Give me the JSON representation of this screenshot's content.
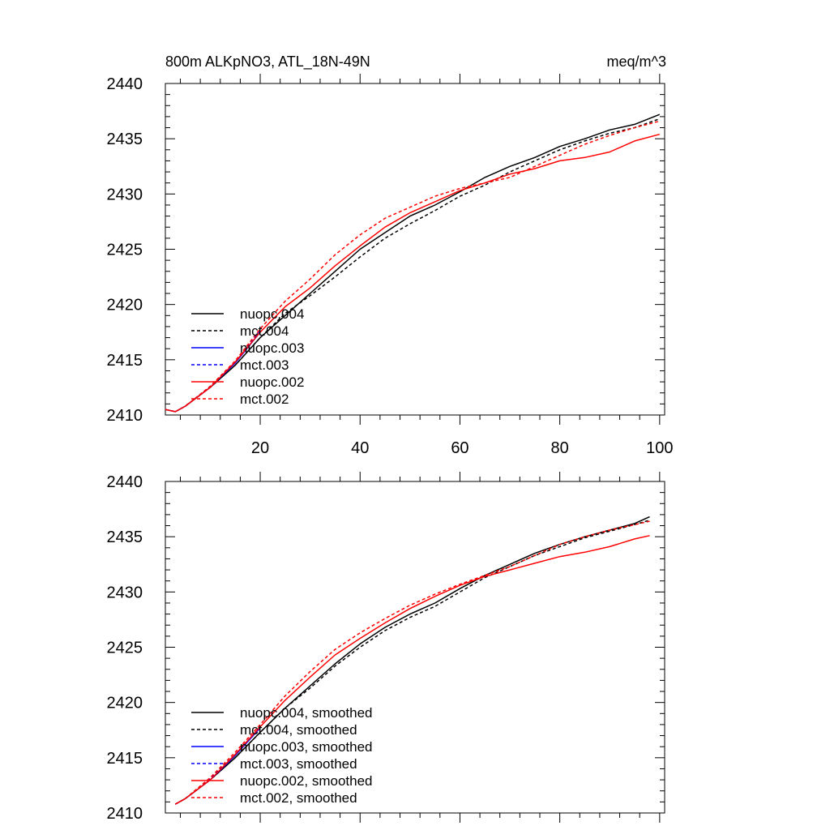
{
  "header": {
    "title": "800m ALKpNO3, ATL_18N-49N",
    "units": "meq/m^3"
  },
  "chart_data": [
    {
      "type": "line",
      "title": "800m ALKpNO3, ATL_18N-49N",
      "units_label": "meq/m^3",
      "xlabel": "",
      "ylabel": "",
      "xlim": [
        1,
        101
      ],
      "ylim": [
        2410,
        2440
      ],
      "x_ticks": [
        20,
        40,
        60,
        80,
        100
      ],
      "x_tick_labels": [
        "20",
        "40",
        "60",
        "80",
        "100"
      ],
      "y_ticks": [
        2410,
        2415,
        2420,
        2425,
        2430,
        2435,
        2440
      ],
      "y_tick_labels": [
        "2410",
        "2415",
        "2420",
        "2425",
        "2430",
        "2435",
        "2440"
      ],
      "grid": false,
      "legend_position": "bottom-left",
      "series": [
        {
          "name": "nuopc.004",
          "color": "#000000",
          "dash": "solid",
          "x": [
            1,
            3,
            5,
            10,
            15,
            20,
            25,
            30,
            35,
            40,
            45,
            50,
            55,
            60,
            65,
            70,
            75,
            80,
            85,
            90,
            95,
            100
          ],
          "values": [
            2410.5,
            2410.3,
            2410.8,
            2412.5,
            2414.5,
            2417.0,
            2419.0,
            2421.0,
            2423.0,
            2425.0,
            2426.5,
            2428.0,
            2429.0,
            2430.2,
            2431.5,
            2432.5,
            2433.3,
            2434.3,
            2435.0,
            2435.8,
            2436.3,
            2437.2
          ]
        },
        {
          "name": "mct.004",
          "color": "#000000",
          "dash": "dashed",
          "x": [
            1,
            3,
            5,
            10,
            15,
            20,
            25,
            30,
            35,
            40,
            45,
            50,
            55,
            60,
            65,
            70,
            75,
            80,
            85,
            90,
            95,
            100
          ],
          "values": [
            2410.5,
            2410.3,
            2410.8,
            2412.5,
            2414.5,
            2417.0,
            2419.2,
            2420.8,
            2422.5,
            2424.3,
            2426.0,
            2427.3,
            2428.5,
            2429.8,
            2430.8,
            2432.0,
            2433.0,
            2434.0,
            2434.8,
            2435.5,
            2436.0,
            2436.8
          ]
        },
        {
          "name": "nuopc.003",
          "color": "#0000ff",
          "dash": "solid",
          "x": [
            1,
            3,
            5,
            10,
            15,
            20
          ],
          "values": [
            2410.5,
            2410.3,
            2410.8,
            2412.5,
            2414.7,
            2417.5
          ]
        },
        {
          "name": "mct.003",
          "color": "#0000ff",
          "dash": "dashed",
          "x": [
            1,
            3,
            5,
            10,
            15,
            20
          ],
          "values": [
            2410.5,
            2410.3,
            2410.8,
            2412.6,
            2414.8,
            2417.6
          ]
        },
        {
          "name": "nuopc.002",
          "color": "#ff0000",
          "dash": "solid",
          "x": [
            1,
            3,
            5,
            10,
            15,
            20,
            25,
            30,
            35,
            40,
            45,
            50,
            55,
            60,
            65,
            70,
            75,
            80,
            85,
            90,
            95,
            100
          ],
          "values": [
            2410.5,
            2410.3,
            2410.8,
            2412.5,
            2414.8,
            2417.5,
            2419.8,
            2421.5,
            2423.5,
            2425.3,
            2427.0,
            2428.3,
            2429.3,
            2430.3,
            2431.0,
            2431.8,
            2432.3,
            2433.0,
            2433.3,
            2433.8,
            2434.8,
            2435.4
          ]
        },
        {
          "name": "mct.002",
          "color": "#ff0000",
          "dash": "dashed",
          "x": [
            1,
            3,
            5,
            10,
            15,
            20,
            25,
            30,
            35,
            40,
            45,
            50,
            55,
            60,
            65,
            70,
            75,
            80,
            85,
            90,
            95,
            100
          ],
          "values": [
            2410.5,
            2410.3,
            2410.8,
            2412.6,
            2414.9,
            2417.8,
            2420.3,
            2422.3,
            2424.5,
            2426.3,
            2427.8,
            2428.8,
            2429.8,
            2430.5,
            2431.0,
            2431.5,
            2432.5,
            2433.5,
            2434.5,
            2435.3,
            2436.0,
            2436.6
          ]
        }
      ]
    },
    {
      "type": "line",
      "title": "",
      "xlabel": "",
      "ylabel": "",
      "xlim": [
        1,
        101
      ],
      "ylim": [
        2410,
        2440
      ],
      "x_ticks": [
        20,
        40,
        60,
        80,
        100
      ],
      "x_tick_labels": [],
      "y_ticks": [
        2410,
        2415,
        2420,
        2425,
        2430,
        2435,
        2440
      ],
      "y_tick_labels": [
        "2410",
        "2415",
        "2420",
        "2425",
        "2430",
        "2435",
        "2440"
      ],
      "grid": false,
      "legend_position": "bottom-left",
      "series": [
        {
          "name": "nuopc.004, smoothed",
          "color": "#000000",
          "dash": "solid",
          "x": [
            3,
            5,
            10,
            15,
            20,
            25,
            30,
            35,
            40,
            45,
            50,
            55,
            60,
            65,
            70,
            75,
            80,
            85,
            90,
            95,
            98
          ],
          "values": [
            2410.8,
            2411.3,
            2413.0,
            2415.0,
            2417.3,
            2419.5,
            2421.5,
            2423.5,
            2425.3,
            2426.8,
            2428.0,
            2429.0,
            2430.3,
            2431.5,
            2432.5,
            2433.5,
            2434.3,
            2435.0,
            2435.6,
            2436.2,
            2436.8
          ]
        },
        {
          "name": "mct.004, smoothed",
          "color": "#000000",
          "dash": "dashed",
          "x": [
            3,
            5,
            10,
            15,
            20,
            25,
            30,
            35,
            40,
            45,
            50,
            55,
            60,
            65,
            70,
            75,
            80,
            85,
            90,
            95,
            98
          ],
          "values": [
            2410.8,
            2411.3,
            2413.0,
            2415.0,
            2417.3,
            2419.5,
            2421.3,
            2423.3,
            2425.0,
            2426.5,
            2427.7,
            2428.7,
            2430.0,
            2431.3,
            2432.3,
            2433.3,
            2434.1,
            2434.9,
            2435.5,
            2436.1,
            2436.5
          ]
        },
        {
          "name": "nuopc.003, smoothed",
          "color": "#0000ff",
          "dash": "solid",
          "x": [
            3,
            5,
            10,
            15,
            20
          ],
          "values": [
            2410.8,
            2411.3,
            2413.0,
            2415.2,
            2417.7
          ]
        },
        {
          "name": "mct.003, smoothed",
          "color": "#0000ff",
          "dash": "dashed",
          "x": [
            3,
            5,
            10,
            15,
            20
          ],
          "values": [
            2410.8,
            2411.3,
            2413.1,
            2415.3,
            2417.8
          ]
        },
        {
          "name": "nuopc.002, smoothed",
          "color": "#ff0000",
          "dash": "solid",
          "x": [
            3,
            5,
            10,
            15,
            20,
            25,
            30,
            35,
            40,
            45,
            50,
            55,
            60,
            65,
            70,
            75,
            80,
            85,
            90,
            95,
            98
          ],
          "values": [
            2410.8,
            2411.3,
            2413.0,
            2415.3,
            2417.8,
            2420.2,
            2422.3,
            2424.3,
            2425.8,
            2427.2,
            2428.5,
            2429.6,
            2430.6,
            2431.4,
            2432.0,
            2432.6,
            2433.2,
            2433.6,
            2434.1,
            2434.8,
            2435.1
          ]
        },
        {
          "name": "mct.002, smoothed",
          "color": "#ff0000",
          "dash": "dashed",
          "x": [
            3,
            5,
            10,
            15,
            20,
            25,
            30,
            35,
            40,
            45,
            50,
            55,
            60,
            65,
            70,
            75,
            80,
            85,
            90,
            95,
            98
          ],
          "values": [
            2410.8,
            2411.3,
            2413.2,
            2415.5,
            2418.0,
            2420.6,
            2422.8,
            2424.8,
            2426.3,
            2427.6,
            2428.8,
            2429.8,
            2430.7,
            2431.5,
            2432.3,
            2433.3,
            2434.3,
            2435.0,
            2435.6,
            2436.1,
            2436.4
          ]
        }
      ]
    }
  ]
}
